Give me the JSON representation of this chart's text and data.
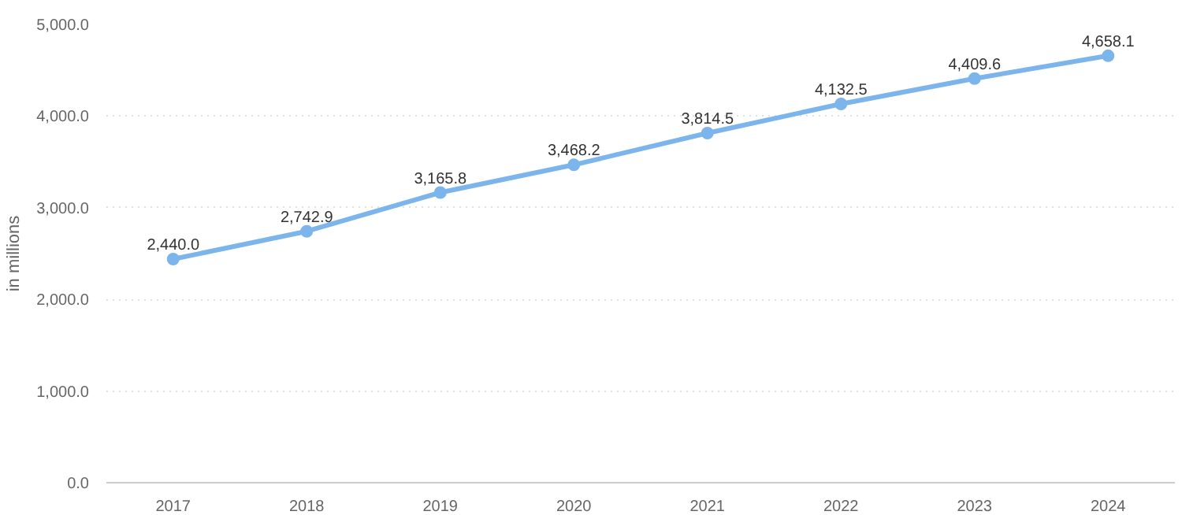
{
  "chart_data": {
    "type": "line",
    "ylabel": "in millions",
    "categories": [
      "2017",
      "2018",
      "2019",
      "2020",
      "2021",
      "2022",
      "2023",
      "2024"
    ],
    "series": [
      {
        "color": "#7cb5ec",
        "values": [
          2440.0,
          2742.9,
          3165.8,
          3468.2,
          3814.5,
          4132.5,
          4409.6,
          4658.1
        ]
      }
    ],
    "value_labels": [
      "2,440.0",
      "2,742.9",
      "3,165.8",
      "3,468.2",
      "3,814.5",
      "4,132.5",
      "4,409.6",
      "4,658.1"
    ],
    "ylim": [
      0,
      5000
    ],
    "yticks": [
      {
        "value": 0,
        "label": "0.0"
      },
      {
        "value": 1000,
        "label": "1,000.0"
      },
      {
        "value": 2000,
        "label": "2,000.0"
      },
      {
        "value": 3000,
        "label": "3,000.0"
      },
      {
        "value": 4000,
        "label": "4,000.0"
      },
      {
        "value": 5000,
        "label": "5,000.0"
      }
    ],
    "grid": "y",
    "marker": "circle",
    "line_style": "solid"
  }
}
